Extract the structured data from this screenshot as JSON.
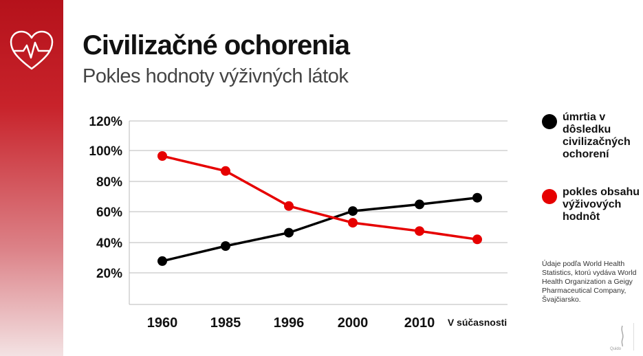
{
  "slide": {
    "title": "Civilizačné ochorenia",
    "subtitle": "Pokles hodnoty výživných látok",
    "source_note": "Údaje podľa World Health Statistics, ktorú vydáva World Health Organization a Geigy Pharmaceutical Company, Švajčiarsko.",
    "logo_text": "Quido",
    "accent_color": "#b5121b",
    "icon": "heart-pulse-icon"
  },
  "chart_data": {
    "type": "line",
    "categories": [
      "1960",
      "1985",
      "1996",
      "2000",
      "2010",
      "V súčasnosti"
    ],
    "y_ticks": [
      "20%",
      "40%",
      "60%",
      "80%",
      "100%",
      "120%"
    ],
    "ylim": [
      10,
      120
    ],
    "grid": true,
    "legend_position": "right",
    "series": [
      {
        "name": "úmrtia v dôsledku civilizačných ochorení",
        "color": "#000000",
        "values": [
          36,
          45,
          53,
          66,
          70,
          74
        ]
      },
      {
        "name": "pokles obsahu výživových hodnôt",
        "color": "#e60000",
        "values": [
          99,
          90,
          69,
          59,
          54,
          49
        ]
      }
    ]
  }
}
